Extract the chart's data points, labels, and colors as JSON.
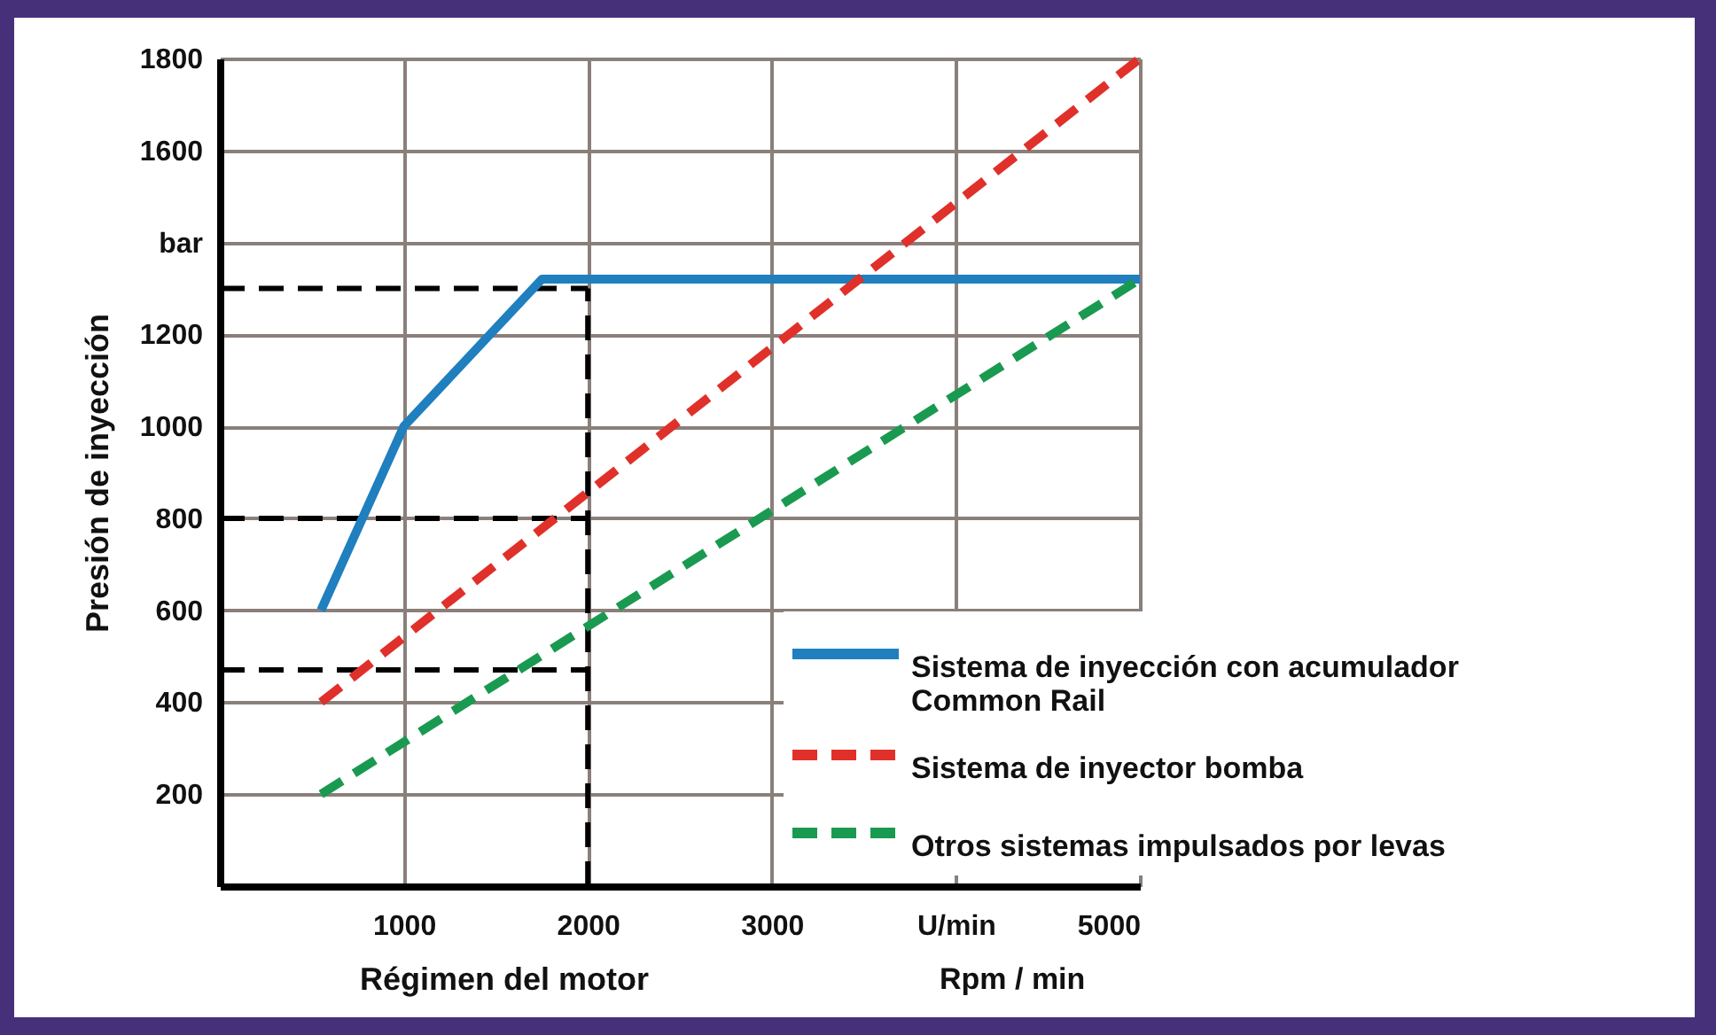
{
  "chart_data": {
    "type": "line",
    "xlabel": "Régimen del motor",
    "ylabel": "Presión de inyección",
    "annotations": [
      "Rpm / min"
    ],
    "xlim": [
      0,
      5000
    ],
    "xticks": [
      1000,
      2000,
      3000,
      {
        "value": 4000,
        "label": "U/min"
      },
      5000
    ],
    "ylim": [
      0,
      1800
    ],
    "yticks": [
      {
        "value": 0,
        "label": null
      },
      200,
      400,
      600,
      800,
      1000,
      1200,
      {
        "value": 1400,
        "label": "bar"
      },
      1600,
      1800
    ],
    "grid": true,
    "legend": "bottom right",
    "marker": "none",
    "series": [
      {
        "name": "Sistema de inyección con acumulador\nCommon Rail",
        "color": "#1f7fbf",
        "line_style": "solid",
        "x": [
          550,
          1000,
          1750,
          5000
        ],
        "values": [
          600,
          1000,
          1320,
          1320
        ]
      },
      {
        "name": "Sistema de inyector bomba",
        "color": "#e0302a",
        "line_style": "dashed",
        "x": [
          550,
          5000
        ],
        "values": [
          400,
          1800
        ]
      },
      {
        "name": "Otros sistemas impulsados por levas",
        "color": "#1a9a50",
        "line_style": "dashed",
        "x": [
          550,
          5000
        ],
        "values": [
          200,
          1320
        ]
      }
    ],
    "ref_lines": [
      {
        "axis": "y",
        "value": 1300,
        "color": "#000000",
        "line_style": "dashed"
      },
      {
        "axis": "y",
        "value": 800,
        "color": "#000000",
        "line_style": "dashed"
      },
      {
        "axis": "y",
        "value": 470,
        "color": "#000000",
        "line_style": "dashed"
      },
      {
        "axis": "x",
        "value": 2000,
        "color": "#000000",
        "line_style": "dashed"
      }
    ]
  }
}
